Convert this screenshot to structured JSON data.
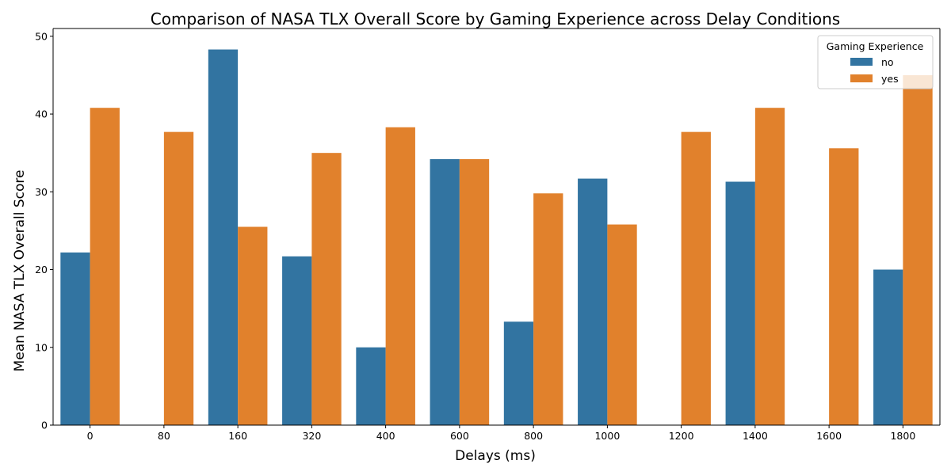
{
  "chart_data": {
    "type": "bar",
    "title": "Comparison of NASA TLX Overall Score by Gaming Experience across Delay Conditions",
    "xlabel": "Delays (ms)",
    "ylabel": "Mean NASA TLX Overall Score",
    "categories": [
      "0",
      "80",
      "160",
      "320",
      "400",
      "600",
      "800",
      "1000",
      "1200",
      "1400",
      "1600",
      "1800"
    ],
    "series": [
      {
        "name": "no",
        "color": "#3274a1",
        "values": [
          22.2,
          null,
          48.3,
          21.7,
          10.0,
          34.2,
          13.3,
          31.7,
          null,
          31.3,
          null,
          20.0
        ]
      },
      {
        "name": "yes",
        "color": "#e1812c",
        "values": [
          40.8,
          37.7,
          25.5,
          35.0,
          38.3,
          34.2,
          29.8,
          25.8,
          37.7,
          40.8,
          35.6,
          45.0
        ]
      }
    ],
    "ylim": [
      0,
      51
    ],
    "yticks": [
      0,
      10,
      20,
      30,
      40,
      50
    ],
    "legend": {
      "title": "Gaming Experience",
      "placement": "top-right"
    },
    "grid": false
  }
}
